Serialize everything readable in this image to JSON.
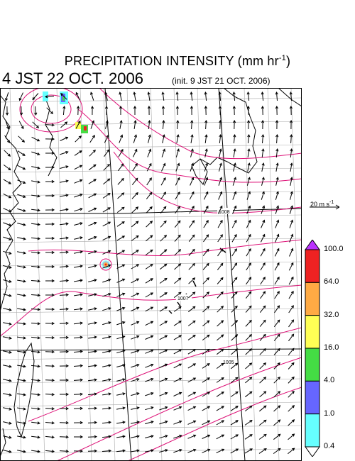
{
  "header": {
    "title_prefix": "PRECIPITATION INTENSITY (mm hr",
    "title_exp": "-1",
    "title_suffix": ")",
    "valid_time": "4 JST 22 OCT. 2006",
    "init_time": "(init. 9 JST 21 OCT. 2006)"
  },
  "reference_vector": {
    "label": "20 m s",
    "label_exp": "-1"
  },
  "colorbar": {
    "levels": [
      "0.4",
      "1.0",
      "4.0",
      "16.0",
      "32.0",
      "64.0",
      "100.0"
    ],
    "colors": [
      "#66ffff",
      "#6666ff",
      "#44dd44",
      "#ffff55",
      "#ffaa44",
      "#ee2222",
      "#bb33ff"
    ],
    "under_color": "#ffffff",
    "over_color": "#bb33ff"
  },
  "map": {
    "isobar_labels": [
      "1008",
      "1007",
      "1005"
    ],
    "isobar_color": "#dd1177",
    "land_color": "#000000",
    "grid_color": "#aaaaaa"
  }
}
